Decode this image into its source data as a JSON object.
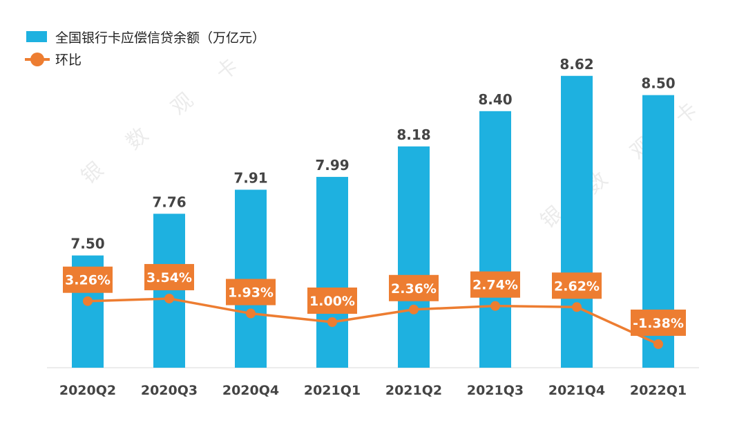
{
  "chart_data": {
    "type": "bar",
    "title": "",
    "xlabel": "",
    "ylabel": "",
    "categories": [
      "2020Q2",
      "2020Q3",
      "2020Q4",
      "2021Q1",
      "2021Q2",
      "2021Q3",
      "2021Q4",
      "2022Q1"
    ],
    "series": [
      {
        "name": "全国银行卡应偿信贷余额（万亿元）",
        "type": "bar",
        "color": "#1EB1E0",
        "values": [
          7.5,
          7.76,
          7.91,
          7.99,
          8.18,
          8.4,
          8.62,
          8.5
        ],
        "labels": [
          "7.50",
          "7.76",
          "7.91",
          "7.99",
          "8.18",
          "8.40",
          "8.62",
          "8.50"
        ]
      },
      {
        "name": "环比",
        "type": "line",
        "color": "#ED7D31",
        "unit": "%",
        "values": [
          3.26,
          3.54,
          1.93,
          1.0,
          2.36,
          2.74,
          2.62,
          -1.38
        ],
        "labels": [
          "3.26%",
          "3.54%",
          "1.93%",
          "1.00%",
          "2.36%",
          "2.74%",
          "2.62%",
          "-1.38%"
        ]
      }
    ],
    "bar_axis_range": [
      6.8,
      8.7
    ],
    "grid": false,
    "legend_position": "top-left"
  },
  "watermark": [
    "银",
    "数",
    "观",
    "卡"
  ]
}
